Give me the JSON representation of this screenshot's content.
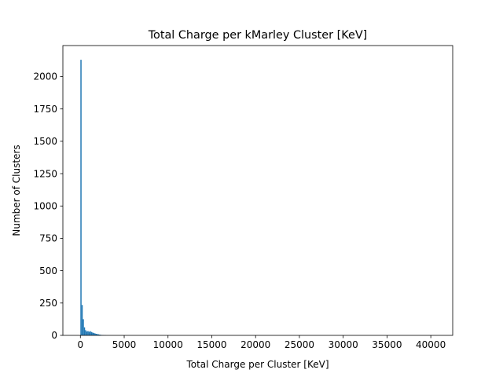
{
  "chart_data": {
    "type": "bar",
    "title": "Total Charge per kMarley Cluster [KeV]",
    "xlabel": "Total Charge per Cluster [KeV]",
    "ylabel": "Number of Clusters",
    "xlim": [
      -2000,
      42500
    ],
    "ylim": [
      0,
      2240
    ],
    "xticks": [
      0,
      5000,
      10000,
      15000,
      20000,
      25000,
      30000,
      35000,
      40000
    ],
    "yticks": [
      0,
      250,
      500,
      750,
      1000,
      1250,
      1500,
      1750,
      2000
    ],
    "bar_color": "#1f77b4",
    "grid": false,
    "legend": "none",
    "bin_width": 133,
    "bins": [
      {
        "x": 0,
        "value": 2130
      },
      {
        "x": 133,
        "value": 235
      },
      {
        "x": 267,
        "value": 125
      },
      {
        "x": 400,
        "value": 62
      },
      {
        "x": 533,
        "value": 40
      },
      {
        "x": 667,
        "value": 30
      },
      {
        "x": 800,
        "value": 33
      },
      {
        "x": 933,
        "value": 28
      },
      {
        "x": 1067,
        "value": 32
      },
      {
        "x": 1200,
        "value": 26
      },
      {
        "x": 1333,
        "value": 22
      },
      {
        "x": 1467,
        "value": 18
      },
      {
        "x": 1600,
        "value": 15
      },
      {
        "x": 1733,
        "value": 12
      },
      {
        "x": 1867,
        "value": 10
      },
      {
        "x": 2000,
        "value": 8
      },
      {
        "x": 2133,
        "value": 6
      },
      {
        "x": 2267,
        "value": 4
      },
      {
        "x": 2400,
        "value": 3
      },
      {
        "x": 2533,
        "value": 2
      },
      {
        "x": 2667,
        "value": 1
      },
      {
        "x": 2800,
        "value": 1
      }
    ]
  }
}
